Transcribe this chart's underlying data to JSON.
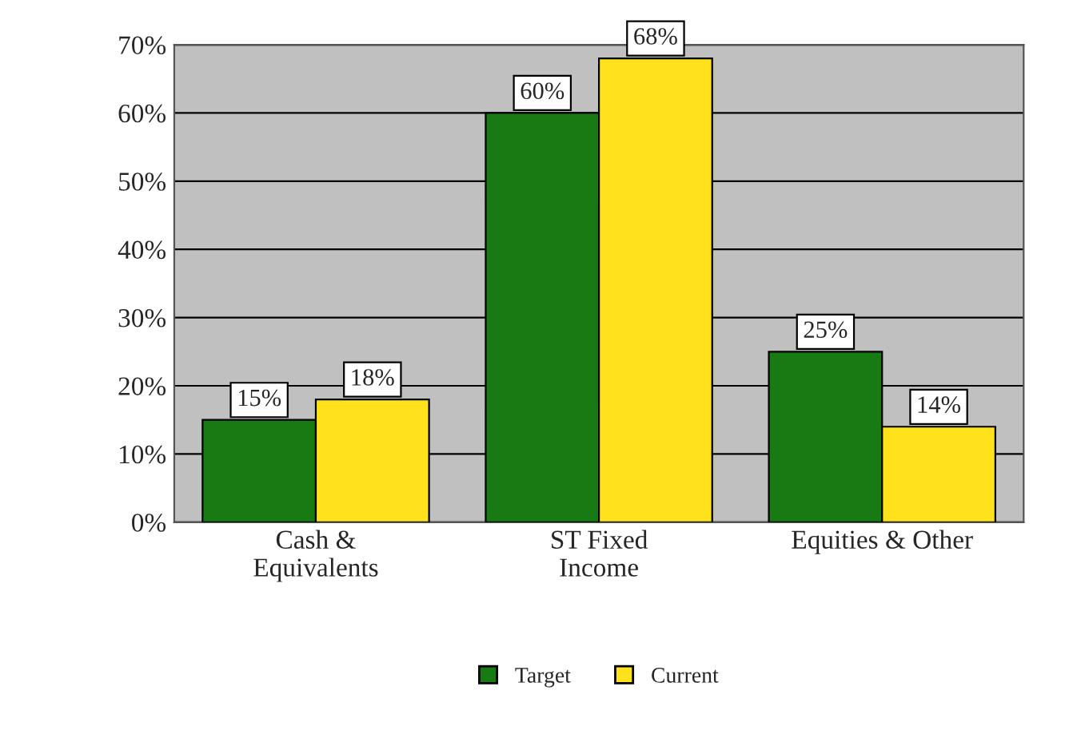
{
  "chart_data": {
    "type": "bar",
    "categories": [
      "Cash &\nEquivalents",
      "ST Fixed\nIncome",
      "Equities & Other"
    ],
    "series": [
      {
        "name": "Target",
        "color": "#187a12",
        "values": [
          15,
          60,
          25
        ],
        "value_labels": [
          "15%",
          "60%",
          "25%"
        ]
      },
      {
        "name": "Current",
        "color": "#ffe21c",
        "values": [
          18,
          68,
          14
        ],
        "value_labels": [
          "18%",
          "68%",
          "14%"
        ]
      }
    ],
    "ylim": [
      0,
      70
    ],
    "yticks": [
      {
        "value": 0,
        "label": "0%"
      },
      {
        "value": 10,
        "label": "10%"
      },
      {
        "value": 20,
        "label": "20%"
      },
      {
        "value": 30,
        "label": "30%"
      },
      {
        "value": 40,
        "label": "40%"
      },
      {
        "value": 50,
        "label": "50%"
      },
      {
        "value": 60,
        "label": "60%"
      },
      {
        "value": 70,
        "label": "70%"
      }
    ],
    "grid": "y",
    "legend": "bottom"
  }
}
